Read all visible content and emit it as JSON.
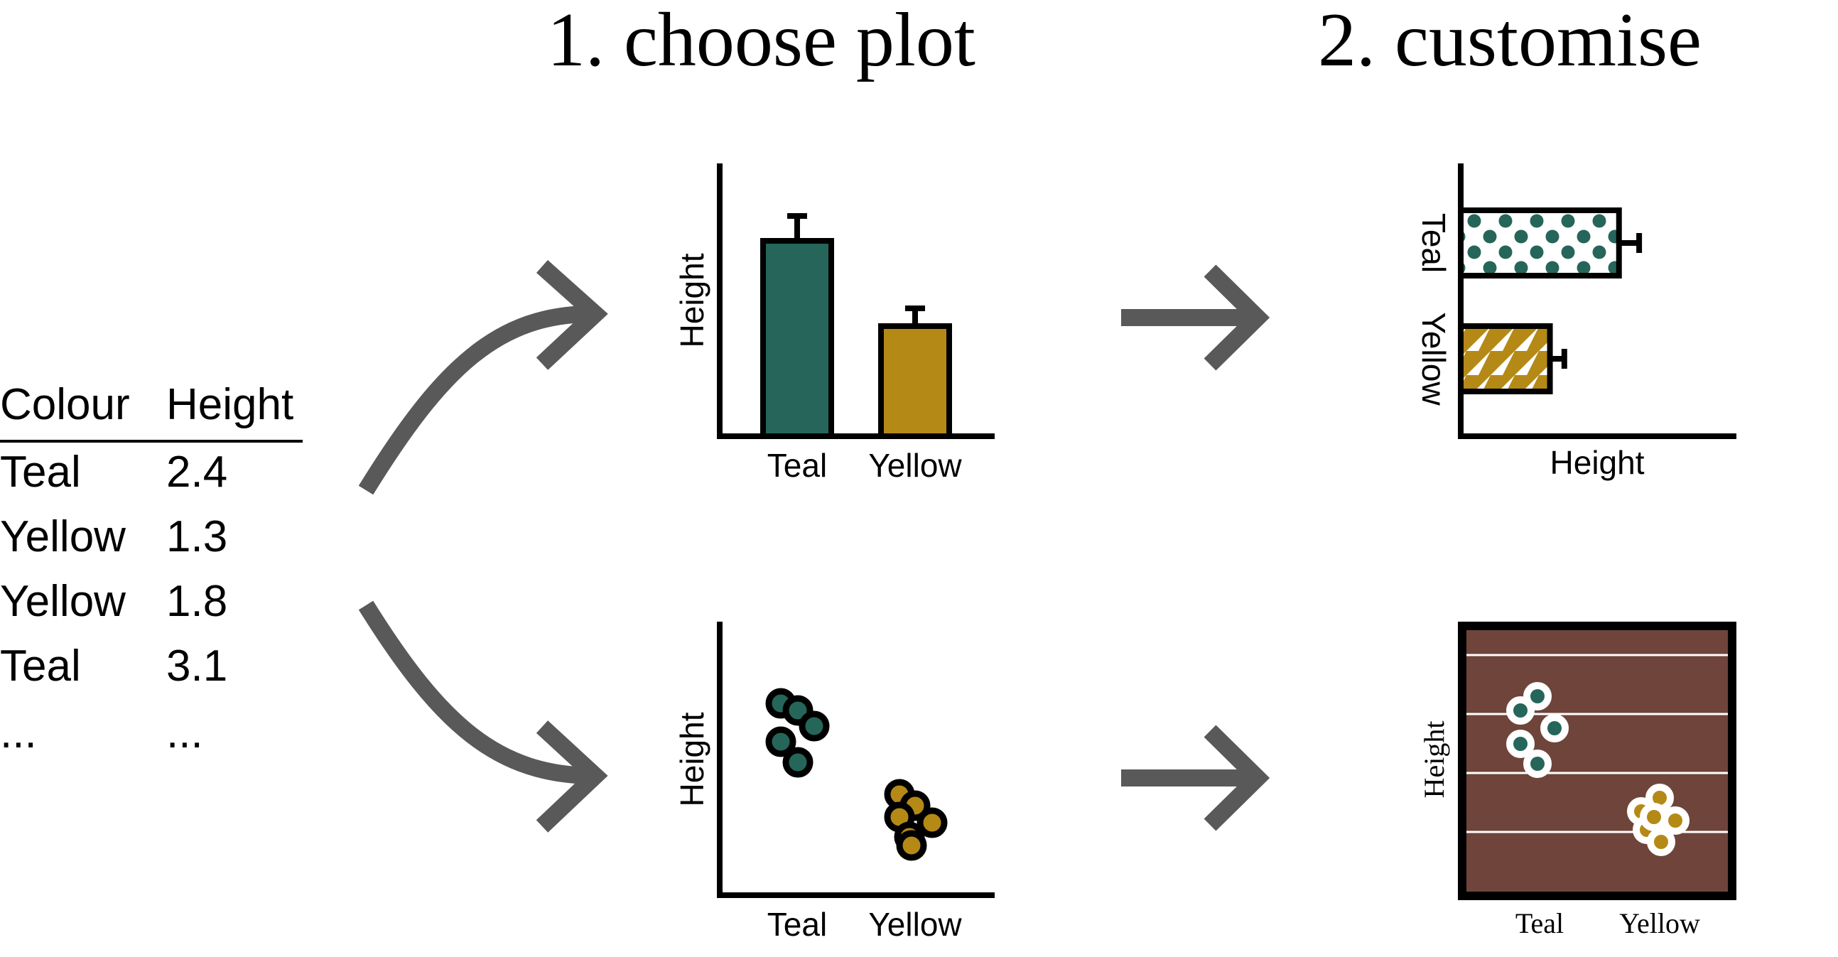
{
  "headings": {
    "step1": "1. choose plot",
    "step2": "2. customise"
  },
  "data_table": {
    "columns": [
      "Colour",
      "Height"
    ],
    "rows": [
      [
        "Teal",
        "2.4"
      ],
      [
        "Yellow",
        "1.3"
      ],
      [
        "Yellow",
        "1.8"
      ],
      [
        "Teal",
        "3.1"
      ],
      [
        "...",
        "..."
      ]
    ]
  },
  "colors": {
    "teal": "#26665A",
    "yellow": "#B58916",
    "arrow": "#595959",
    "axis": "#000000",
    "panel_bg": "#6F443B",
    "grid": "#ffffff"
  },
  "icons": [
    "curved-arrow-up-icon",
    "curved-arrow-down-icon",
    "right-arrow-icon",
    "right-arrow-icon"
  ],
  "chart_data": [
    {
      "type": "bar",
      "orientation": "vertical",
      "categories": [
        "Teal",
        "Yellow"
      ],
      "values": [
        2.75,
        1.55
      ],
      "error": [
        0.35,
        0.25
      ],
      "ylabel": "Height",
      "xlabel": ""
    },
    {
      "type": "bar",
      "orientation": "horizontal",
      "categories": [
        "Teal",
        "Yellow"
      ],
      "values": [
        2.75,
        1.55
      ],
      "error": [
        0.35,
        0.25
      ],
      "fill_patterns": [
        "dots",
        "triangles"
      ],
      "xlabel": "Height",
      "ylabel": ""
    },
    {
      "type": "scatter",
      "categories": [
        "Teal",
        "Yellow"
      ],
      "series": [
        {
          "category": "Teal",
          "values": [
            3.1,
            2.9,
            3.0,
            2.8,
            2.7
          ]
        },
        {
          "category": "Yellow",
          "values": [
            1.5,
            1.4,
            1.3,
            1.45,
            1.25,
            1.35
          ]
        }
      ],
      "ylabel": "Height",
      "xlabel": ""
    },
    {
      "type": "scatter",
      "categories": [
        "Teal",
        "Yellow"
      ],
      "series": [
        {
          "category": "Teal",
          "values": [
            3.1,
            2.9,
            3.0,
            2.8,
            2.7
          ]
        },
        {
          "category": "Yellow",
          "values": [
            1.5,
            1.4,
            1.3,
            1.45,
            1.25,
            1.35
          ]
        }
      ],
      "ylabel": "Height",
      "xlabel": "",
      "background": "dark brown",
      "grid": true
    }
  ]
}
